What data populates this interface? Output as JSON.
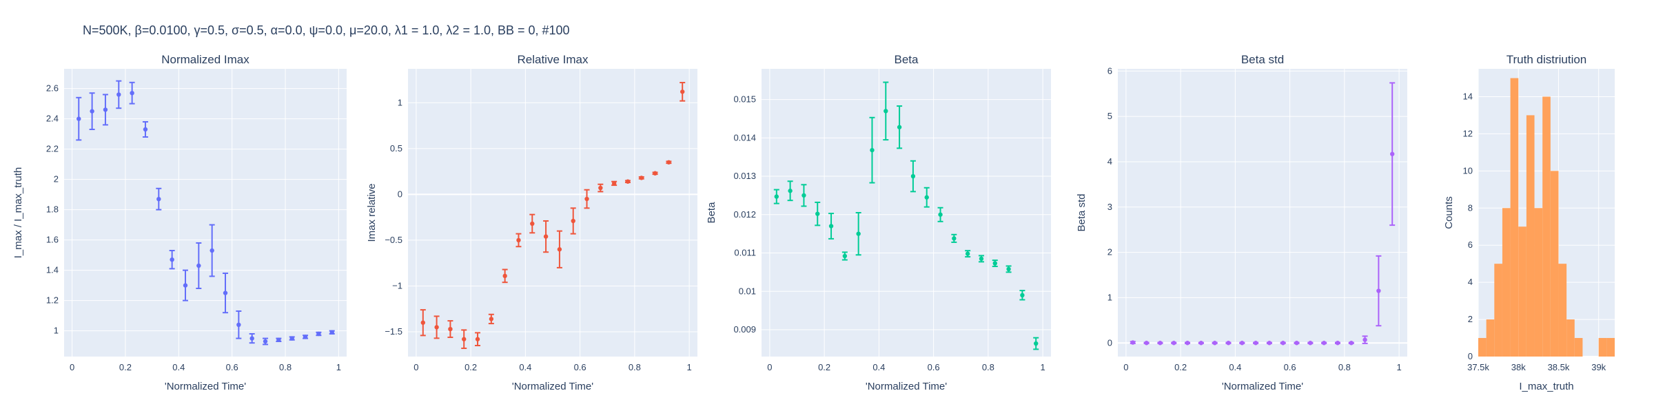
{
  "figure_title": "N=500K, β=0.0100, γ=0.5, σ=0.5,  α=0.0, ψ=0.0, μ=20.0, λ1 = 1.0, λ2 = 1.0, BB = 0, #100",
  "colors": {
    "plot_bg": "#e5ecf6",
    "grid": "#ffffff",
    "text": "#2a3f5f",
    "series": [
      "#636efa",
      "#ef553b",
      "#00cc96",
      "#ab63fa",
      "#ffa15a"
    ]
  },
  "chart_data": [
    {
      "type": "scatter",
      "title": "Normalized Imax",
      "xlabel": "'Normalized Time'",
      "ylabel": "I_max / I_max_truth",
      "color": "#636efa",
      "xlim": [
        -0.03,
        1.03
      ],
      "ylim": [
        0.83,
        2.73
      ],
      "xticks": [
        0,
        0.2,
        0.4,
        0.6,
        0.8,
        1
      ],
      "xtick_labels": [
        "0",
        "0.2",
        "0.4",
        "0.6",
        "0.8",
        "1"
      ],
      "yticks": [
        1,
        1.2,
        1.4,
        1.6,
        1.8,
        2,
        2.2,
        2.4,
        2.6
      ],
      "ytick_labels": [
        "1",
        "1.2",
        "1.4",
        "1.6",
        "1.8",
        "2",
        "2.2",
        "2.4",
        "2.6"
      ],
      "x": [
        0.025,
        0.075,
        0.125,
        0.175,
        0.225,
        0.275,
        0.325,
        0.375,
        0.425,
        0.475,
        0.525,
        0.575,
        0.625,
        0.675,
        0.725,
        0.775,
        0.825,
        0.875,
        0.925,
        0.975
      ],
      "y": [
        2.4,
        2.45,
        2.46,
        2.56,
        2.57,
        2.33,
        1.87,
        1.47,
        1.3,
        1.43,
        1.53,
        1.25,
        1.04,
        0.95,
        0.93,
        0.94,
        0.95,
        0.96,
        0.98,
        0.99
      ],
      "err": [
        0.14,
        0.12,
        0.1,
        0.09,
        0.07,
        0.05,
        0.07,
        0.06,
        0.1,
        0.15,
        0.17,
        0.13,
        0.09,
        0.03,
        0.02,
        0.01,
        0.01,
        0.01,
        0.01,
        0.01
      ]
    },
    {
      "type": "scatter",
      "title": "Relative Imax",
      "xlabel": "'Normalized Time'",
      "ylabel": "Imax relative",
      "color": "#ef553b",
      "xlim": [
        -0.03,
        1.03
      ],
      "ylim": [
        -1.77,
        1.37
      ],
      "xticks": [
        0,
        0.2,
        0.4,
        0.6,
        0.8,
        1
      ],
      "xtick_labels": [
        "0",
        "0.2",
        "0.4",
        "0.6",
        "0.8",
        "1"
      ],
      "yticks": [
        -1.5,
        -1,
        -0.5,
        0,
        0.5,
        1
      ],
      "ytick_labels": [
        "−1.5",
        "−1",
        "−0.5",
        "0",
        "0.5",
        "1"
      ],
      "x": [
        0.025,
        0.075,
        0.125,
        0.175,
        0.225,
        0.275,
        0.325,
        0.375,
        0.425,
        0.475,
        0.525,
        0.575,
        0.625,
        0.675,
        0.725,
        0.775,
        0.825,
        0.875,
        0.925,
        0.975
      ],
      "y": [
        -1.4,
        -1.45,
        -1.47,
        -1.58,
        -1.58,
        -1.36,
        -0.89,
        -0.5,
        -0.32,
        -0.46,
        -0.6,
        -0.29,
        -0.05,
        0.07,
        0.12,
        0.14,
        0.18,
        0.23,
        0.35,
        1.12
      ],
      "err": [
        0.14,
        0.12,
        0.09,
        0.1,
        0.07,
        0.05,
        0.07,
        0.07,
        0.1,
        0.17,
        0.2,
        0.14,
        0.1,
        0.04,
        0.02,
        0.01,
        0.01,
        0.01,
        0.01,
        0.1
      ]
    },
    {
      "type": "scatter",
      "title": "Beta",
      "xlabel": "'Normalized Time'",
      "ylabel": "Beta",
      "color": "#00cc96",
      "xlim": [
        -0.03,
        1.03
      ],
      "ylim": [
        0.0083,
        0.0158
      ],
      "xticks": [
        0,
        0.2,
        0.4,
        0.6,
        0.8,
        1
      ],
      "xtick_labels": [
        "0",
        "0.2",
        "0.4",
        "0.6",
        "0.8",
        "1"
      ],
      "yticks": [
        0.009,
        0.01,
        0.011,
        0.012,
        0.013,
        0.014,
        0.015
      ],
      "ytick_labels": [
        "0.009",
        "0.01",
        "0.011",
        "0.012",
        "0.013",
        "0.014",
        "0.015"
      ],
      "x": [
        0.025,
        0.075,
        0.125,
        0.175,
        0.225,
        0.275,
        0.325,
        0.375,
        0.425,
        0.475,
        0.525,
        0.575,
        0.625,
        0.675,
        0.725,
        0.775,
        0.825,
        0.875,
        0.925,
        0.975
      ],
      "y": [
        0.01247,
        0.01262,
        0.0125,
        0.01202,
        0.0117,
        0.01092,
        0.0115,
        0.01368,
        0.0147,
        0.01428,
        0.013,
        0.01245,
        0.012,
        0.01138,
        0.01098,
        0.01085,
        0.01073,
        0.01058,
        0.0099,
        0.00864
      ],
      "err": [
        0.00018,
        0.00025,
        0.00028,
        0.0003,
        0.00033,
        0.0001,
        0.00055,
        0.00085,
        0.00075,
        0.00055,
        0.0004,
        0.00025,
        0.00018,
        0.0001,
        8e-05,
        8e-05,
        8e-05,
        8e-05,
        0.00012,
        0.00015
      ]
    },
    {
      "type": "scatter",
      "title": "Beta std",
      "xlabel": "'Normalized Time'",
      "ylabel": "Beta std",
      "color": "#ab63fa",
      "xlim": [
        -0.03,
        1.03
      ],
      "ylim": [
        -0.3,
        6.05
      ],
      "xticks": [
        0,
        0.2,
        0.4,
        0.6,
        0.8,
        1
      ],
      "xtick_labels": [
        "0",
        "0.2",
        "0.4",
        "0.6",
        "0.8",
        "1"
      ],
      "yticks": [
        0,
        1,
        2,
        3,
        4,
        5,
        6
      ],
      "ytick_labels": [
        "0",
        "1",
        "2",
        "3",
        "4",
        "5",
        "6"
      ],
      "x": [
        0.025,
        0.075,
        0.125,
        0.175,
        0.225,
        0.275,
        0.325,
        0.375,
        0.425,
        0.475,
        0.525,
        0.575,
        0.625,
        0.675,
        0.725,
        0.775,
        0.825,
        0.875,
        0.925,
        0.975
      ],
      "y": [
        0.01,
        0.0,
        0.0,
        0.0,
        0.0,
        0.0,
        0.0,
        0.0,
        0.0,
        0.0,
        0.0,
        0.0,
        0.0,
        0.0,
        0.0,
        0.0,
        0.0,
        0.07,
        1.15,
        4.17
      ],
      "err": [
        0.02,
        0.01,
        0.01,
        0.01,
        0.01,
        0.01,
        0.01,
        0.01,
        0.01,
        0.01,
        0.01,
        0.01,
        0.01,
        0.01,
        0.01,
        0.01,
        0.01,
        0.08,
        0.77,
        1.57
      ]
    },
    {
      "type": "bar",
      "title": "Truth distriution",
      "xlabel": "I_max_truth",
      "ylabel": "Counts",
      "color": "#ffa15a",
      "xlim": [
        37500,
        39200
      ],
      "ylim": [
        0,
        15.5
      ],
      "xticks": [
        37500,
        38000,
        38500,
        39000
      ],
      "xtick_labels": [
        "37.5k",
        "38k",
        "38.5k",
        "39k"
      ],
      "yticks": [
        0,
        2,
        4,
        6,
        8,
        10,
        12,
        14
      ],
      "ytick_labels": [
        "0",
        "2",
        "4",
        "6",
        "8",
        "10",
        "12",
        "14"
      ],
      "bin_start": 37500,
      "bin_width": 100,
      "counts": [
        1,
        2,
        5,
        8,
        15,
        7,
        13,
        8,
        14,
        10,
        5,
        2,
        1,
        0,
        0,
        1,
        1
      ]
    }
  ]
}
